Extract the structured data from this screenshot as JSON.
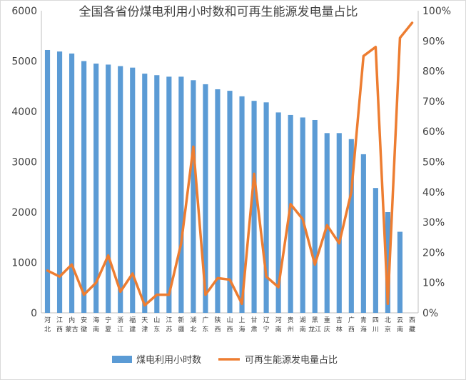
{
  "chart_data": {
    "type": "bar",
    "title": "全国各省份煤电利用小时数和可再生能源发电量占比",
    "categories": [
      "河北",
      "江西",
      "内蒙古",
      "安徽",
      "海南",
      "宁夏",
      "浙江",
      "福建",
      "天津",
      "山东",
      "江苏",
      "新疆",
      "湖北",
      "广东",
      "陕西",
      "山西",
      "上海",
      "甘肃",
      "辽宁",
      "河南",
      "贵州",
      "湖南",
      "黑龙江",
      "重庆",
      "吉林",
      "广西",
      "青海",
      "四川",
      "北京",
      "云南",
      "西藏"
    ],
    "category_labels": [
      "河\n北",
      "江\n西",
      "内\n蒙古",
      "安\n徽",
      "海\n南",
      "宁\n夏",
      "浙\n江",
      "福\n建",
      "天\n津",
      "山\n东",
      "江\n苏",
      "新\n疆",
      "湖\n北",
      "广\n东",
      "陕\n西",
      "山\n西",
      "上\n海",
      "甘\n肃",
      "辽\n宁",
      "河\n南",
      "贵\n州",
      "湖\n南",
      "黑\n龙江",
      "重\n庆",
      "吉\n林",
      "广\n西",
      "青\n海",
      "四\n川",
      "北\n京",
      "云\n南",
      "西\n藏"
    ],
    "series": [
      {
        "name": "煤电利用小时数",
        "type": "bar",
        "axis": "left",
        "color": "#5b9bd5",
        "values": [
          5220,
          5190,
          5150,
          5000,
          4950,
          4930,
          4900,
          4870,
          4750,
          4720,
          4690,
          4690,
          4620,
          4540,
          4440,
          4410,
          4300,
          4210,
          4180,
          3980,
          3930,
          3880,
          3830,
          3570,
          3570,
          3450,
          3150,
          2480,
          2000,
          1610,
          null
        ]
      },
      {
        "name": "可再生能源发电量占比",
        "type": "line",
        "axis": "right",
        "color": "#ed7d31",
        "values": [
          14,
          12,
          16,
          6,
          10,
          19,
          7,
          13,
          2.5,
          6,
          6,
          23,
          55,
          6,
          11.5,
          11,
          3,
          46,
          12,
          8.5,
          36,
          31,
          16,
          29,
          23,
          40,
          85,
          88,
          3,
          91,
          96
        ]
      }
    ],
    "y_left": {
      "min": 0,
      "max": 6000,
      "step": 1000,
      "ticks": [
        "0",
        "1000",
        "2000",
        "3000",
        "4000",
        "5000",
        "6000"
      ]
    },
    "y_right": {
      "min": 0,
      "max": 100,
      "step": 10,
      "ticks": [
        "0%",
        "10%",
        "20%",
        "30%",
        "40%",
        "50%",
        "60%",
        "70%",
        "80%",
        "90%",
        "100%"
      ]
    },
    "legend_position": "bottom"
  }
}
